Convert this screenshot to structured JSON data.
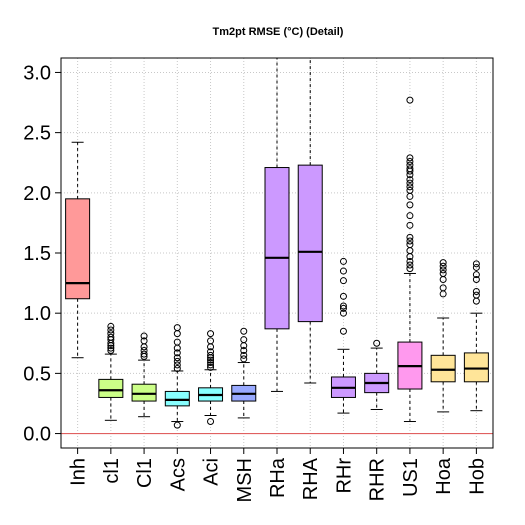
{
  "chart_data": {
    "type": "boxplot",
    "title": "Tm2pt RMSE (°C) (Detail)",
    "xlabel": "",
    "ylabel": "",
    "ylim": [
      -0.12,
      3.12
    ],
    "yticks": [
      0.0,
      0.5,
      1.0,
      1.5,
      2.0,
      2.5,
      3.0
    ],
    "ytick_labels": [
      "0.0",
      "0.5",
      "1.0",
      "1.5",
      "2.0",
      "2.5",
      "3.0"
    ],
    "grid": true,
    "reference_line": {
      "y": 0.0,
      "color": "#e06060"
    },
    "categories": [
      "Inh",
      "cl1",
      "Cl1",
      "Acs",
      "Aci",
      "MSH",
      "RHa",
      "RHA",
      "RHr",
      "RHR",
      "US1",
      "Hoa",
      "Hob"
    ],
    "boxes": [
      {
        "name": "Inh",
        "whisker_low": 0.63,
        "q1": 1.12,
        "median": 1.25,
        "q3": 1.95,
        "whisker_high": 2.42,
        "outliers": [],
        "color": "#ff9999"
      },
      {
        "name": "cl1",
        "whisker_low": 0.11,
        "q1": 0.3,
        "median": 0.36,
        "q3": 0.45,
        "whisker_high": 0.66,
        "outliers": [
          0.69,
          0.71,
          0.73,
          0.75,
          0.78,
          0.8,
          0.83,
          0.86,
          0.89
        ],
        "color": "#ccff88"
      },
      {
        "name": "Cl1",
        "whisker_low": 0.14,
        "q1": 0.27,
        "median": 0.33,
        "q3": 0.41,
        "whisker_high": 0.61,
        "outliers": [
          0.64,
          0.66,
          0.69,
          0.72,
          0.77,
          0.81
        ],
        "color": "#ccff88"
      },
      {
        "name": "Acs",
        "whisker_low": 0.1,
        "q1": 0.23,
        "median": 0.28,
        "q3": 0.35,
        "whisker_high": 0.52,
        "outliers": [
          0.07,
          0.54,
          0.57,
          0.6,
          0.63,
          0.67,
          0.71,
          0.76,
          0.83,
          0.88
        ],
        "color": "#88ffff"
      },
      {
        "name": "Aci",
        "whisker_low": 0.15,
        "q1": 0.27,
        "median": 0.32,
        "q3": 0.38,
        "whisker_high": 0.53,
        "outliers": [
          0.1,
          0.55,
          0.57,
          0.59,
          0.61,
          0.63,
          0.65,
          0.68,
          0.72,
          0.77,
          0.83
        ],
        "color": "#88ffff"
      },
      {
        "name": "MSH",
        "whisker_low": 0.13,
        "q1": 0.27,
        "median": 0.33,
        "q3": 0.4,
        "whisker_high": 0.59,
        "outliers": [
          0.62,
          0.65,
          0.69,
          0.73,
          0.78,
          0.85
        ],
        "color": "#99aaff"
      },
      {
        "name": "RHa",
        "whisker_low": 0.35,
        "q1": 0.87,
        "median": 1.46,
        "q3": 2.21,
        "whisker_high": 3.12,
        "outliers": [],
        "color": "#cc99ff"
      },
      {
        "name": "RHA",
        "whisker_low": 0.42,
        "q1": 0.93,
        "median": 1.51,
        "q3": 2.23,
        "whisker_high": 3.12,
        "outliers": [],
        "color": "#cc99ff"
      },
      {
        "name": "RHr",
        "whisker_low": 0.17,
        "q1": 0.3,
        "median": 0.38,
        "q3": 0.47,
        "whisker_high": 0.7,
        "outliers": [
          0.85,
          1.0,
          1.04,
          1.06,
          1.14,
          1.27,
          1.35,
          1.43
        ],
        "color": "#cc99ff"
      },
      {
        "name": "RHR",
        "whisker_low": 0.2,
        "q1": 0.34,
        "median": 0.42,
        "q3": 0.5,
        "whisker_high": 0.71,
        "outliers": [
          0.75
        ],
        "color": "#cc99ff"
      },
      {
        "name": "US1",
        "whisker_low": 0.1,
        "q1": 0.37,
        "median": 0.56,
        "q3": 0.76,
        "whisker_high": 1.33,
        "outliers": [
          1.37,
          1.4,
          1.43,
          1.47,
          1.52,
          1.57,
          1.6,
          1.63,
          1.73,
          1.81,
          1.9,
          1.97,
          2.02,
          2.05,
          2.08,
          2.11,
          2.15,
          2.18,
          2.2,
          2.23,
          2.26,
          2.29,
          2.77
        ],
        "color": "#ff99ee"
      },
      {
        "name": "Hoa",
        "whisker_low": 0.18,
        "q1": 0.43,
        "median": 0.53,
        "q3": 0.65,
        "whisker_high": 0.96,
        "outliers": [
          1.16,
          1.21,
          1.28,
          1.33,
          1.36,
          1.39,
          1.42
        ],
        "color": "#ffe599"
      },
      {
        "name": "Hob",
        "whisker_low": 0.19,
        "q1": 0.43,
        "median": 0.54,
        "q3": 0.67,
        "whisker_high": 1.0,
        "outliers": [
          1.1,
          1.15,
          1.18,
          1.28,
          1.32,
          1.38,
          1.41
        ],
        "color": "#ffe599"
      }
    ]
  }
}
